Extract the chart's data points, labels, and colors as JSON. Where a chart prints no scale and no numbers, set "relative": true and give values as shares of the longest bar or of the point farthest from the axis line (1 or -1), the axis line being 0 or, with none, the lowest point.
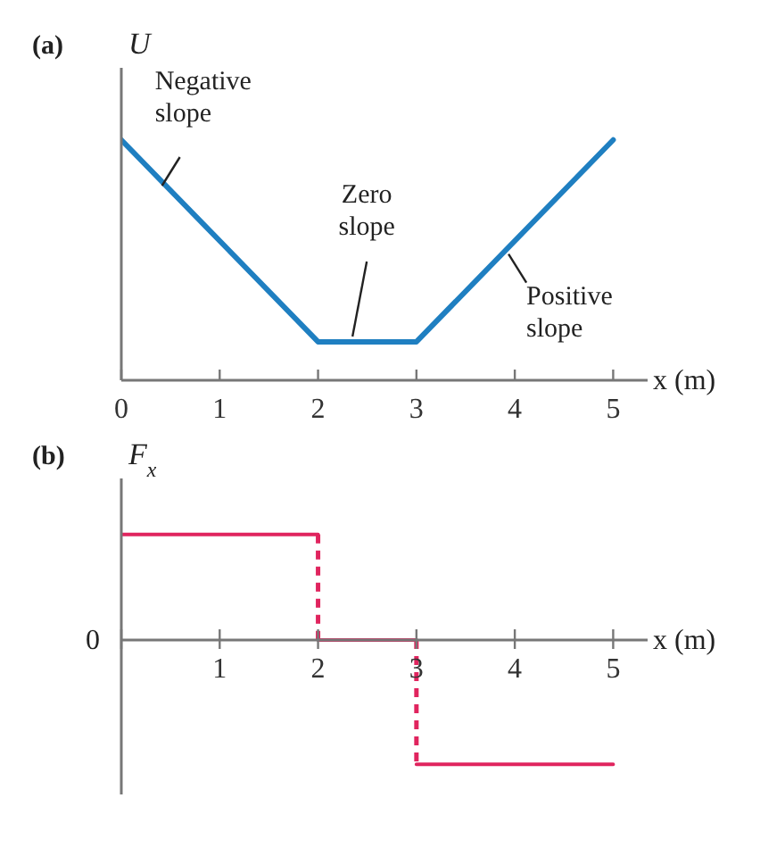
{
  "chart_data": [
    {
      "type": "line",
      "title": "(a)",
      "ylabel": "U",
      "xlabel": "x (m)",
      "relative": true,
      "x": [
        0,
        2,
        3,
        5
      ],
      "xlim": [
        0,
        5.35
      ],
      "xticks": [
        0,
        1,
        2,
        3,
        4,
        5
      ],
      "series": [
        {
          "color": "#1f7fc1",
          "values": [
            1,
            0.16,
            0.16,
            1
          ]
        }
      ],
      "annotations": [
        {
          "text": "Negative slope",
          "x": 0.45,
          "y": 0.78
        },
        {
          "text": "Zero slope",
          "x": 2.35,
          "y": 0.16
        },
        {
          "text": "Positive slope",
          "x": 3.9,
          "y": 0.54
        }
      ]
    },
    {
      "type": "step",
      "title": "(b)",
      "ylabel": "F$_{x}$",
      "xlabel": "x (m)",
      "relative": true,
      "x": [
        0,
        2,
        3,
        5
      ],
      "xlim": [
        0,
        5.35
      ],
      "xticks": [
        {
          "value": 0,
          "label": null
        },
        1,
        2,
        3,
        4,
        5
      ],
      "series": [
        {
          "color": "#e0245e",
          "values": [
            0.85,
            0,
            -1,
            -1
          ]
        }
      ],
      "annotations": [
        "0"
      ]
    }
  ]
}
